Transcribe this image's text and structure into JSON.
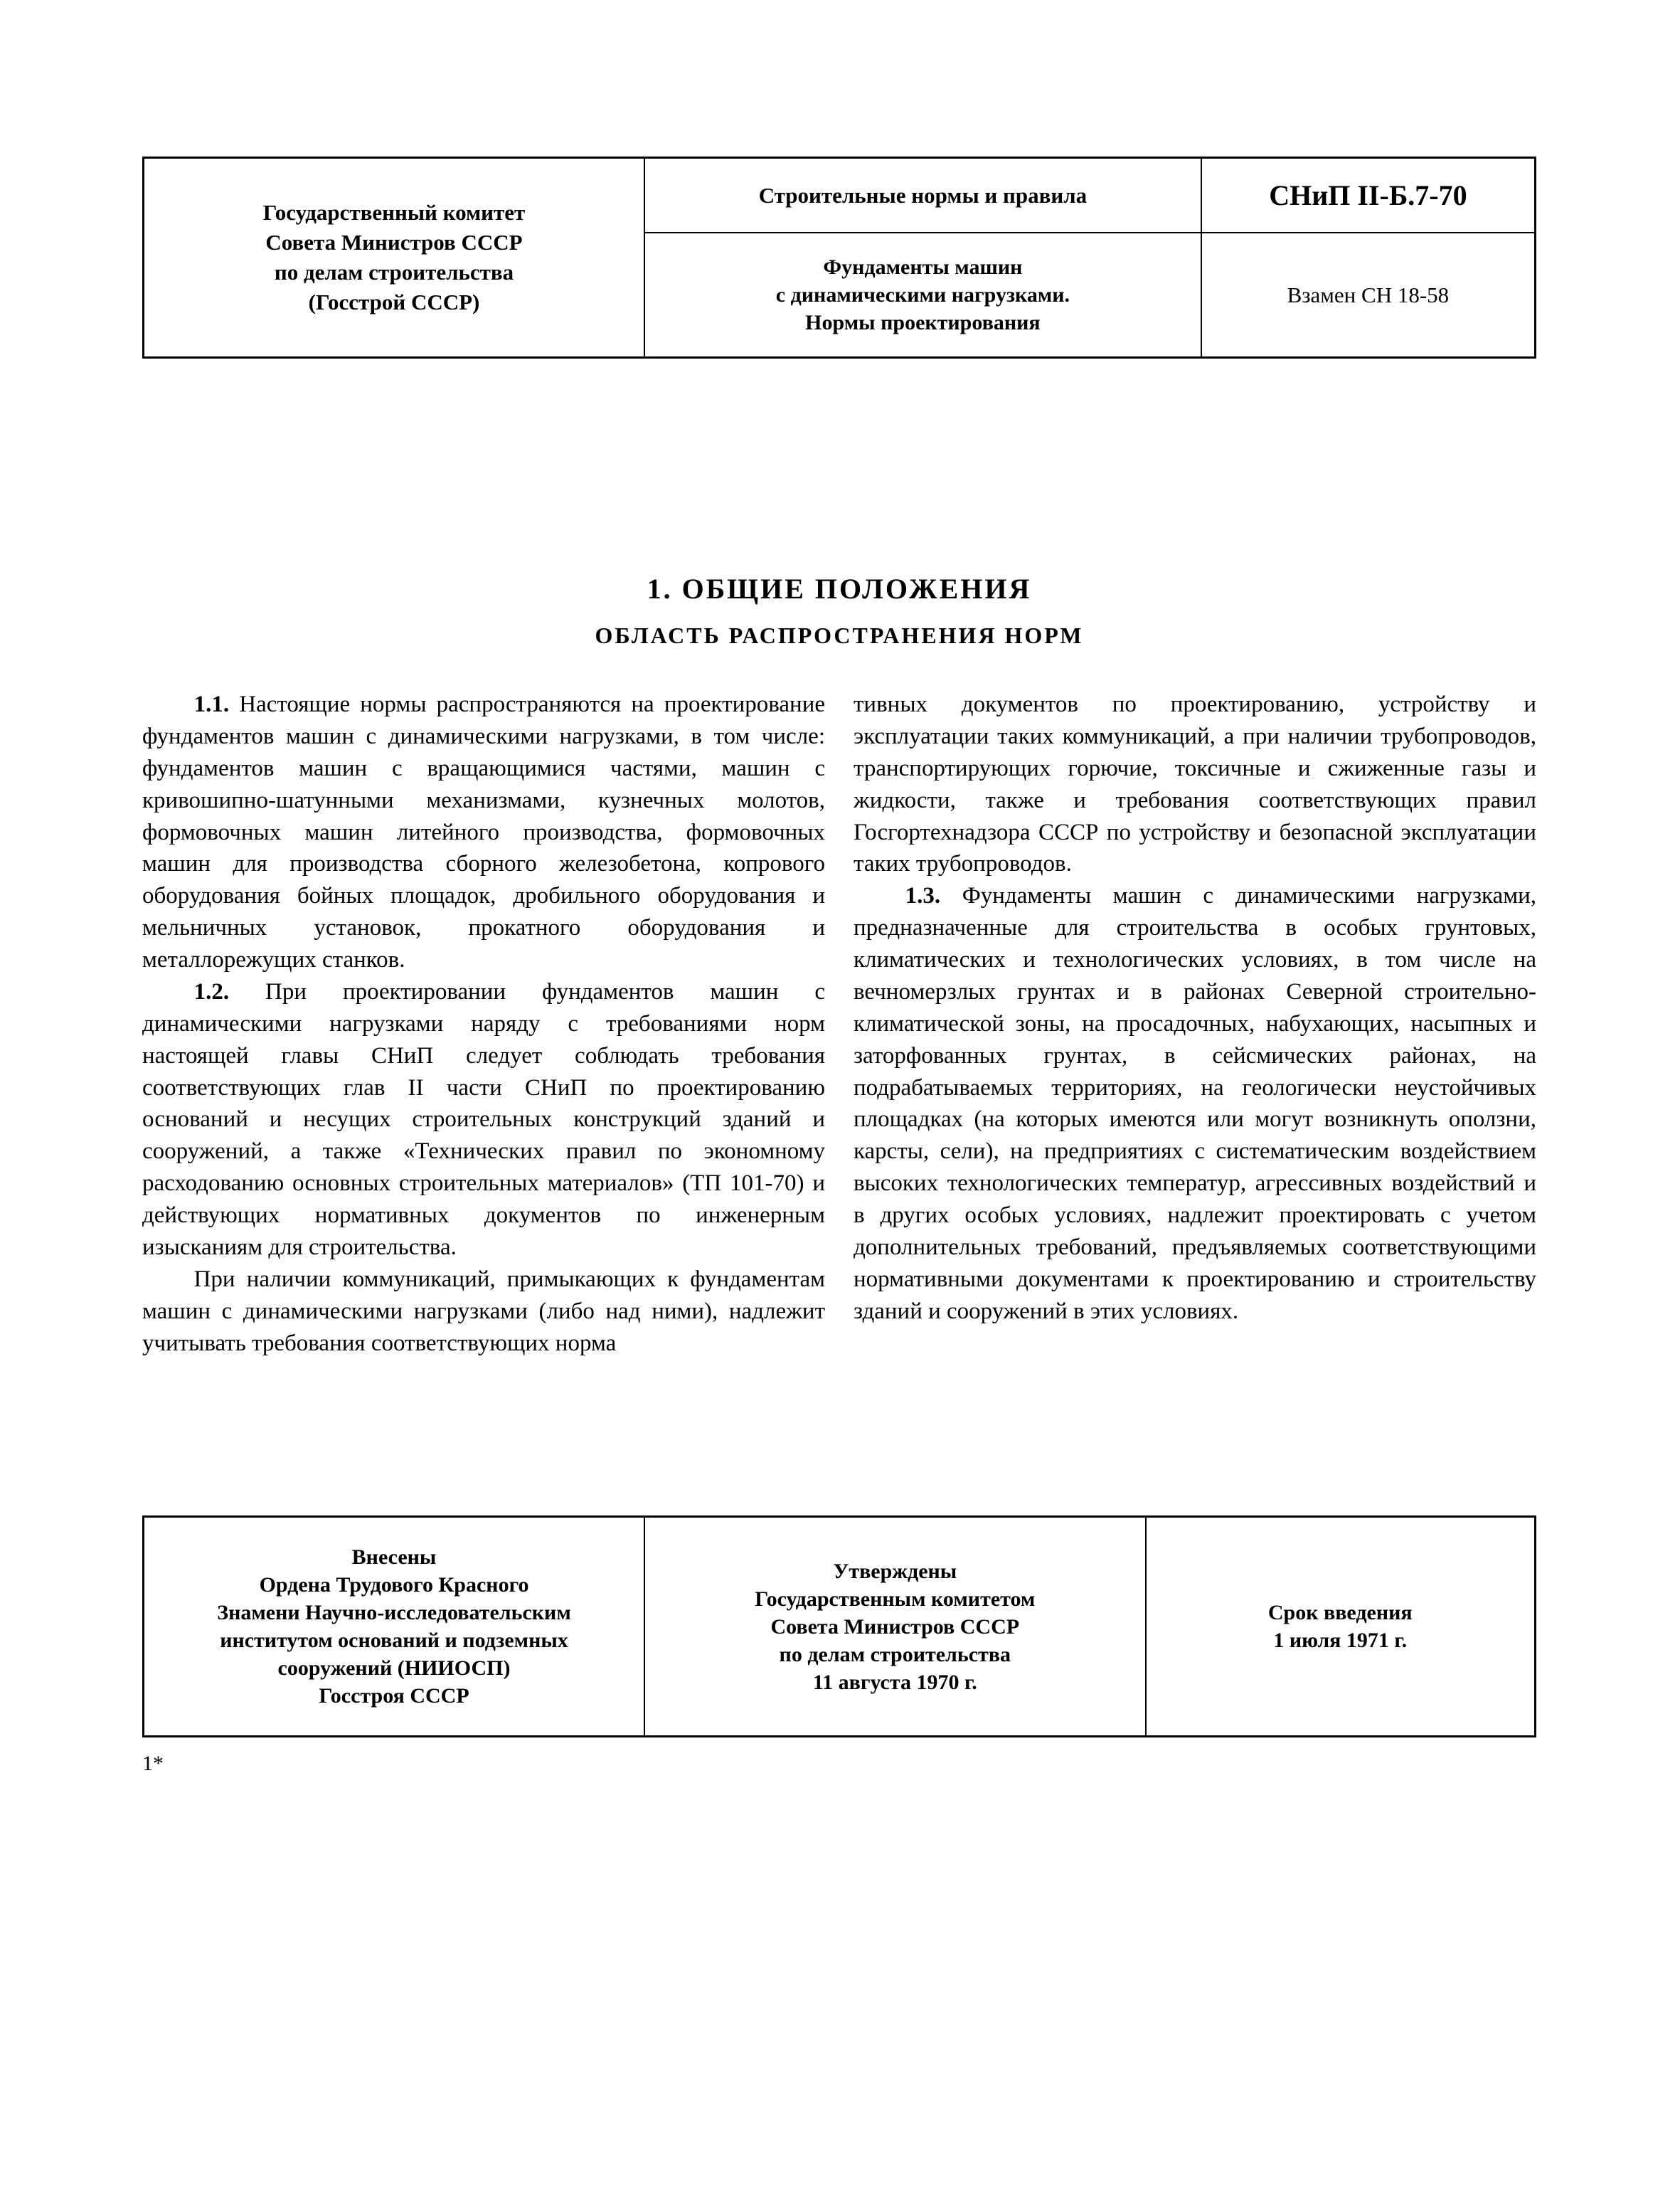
{
  "page_bg": "#ffffff",
  "text_color": "#000000",
  "border_color": "#000000",
  "header": {
    "issuer": "Государственный комитет\nСовета Министров СССР\nпо делам строительства\n(Госстрой СССР)",
    "category": "Строительные нормы и правила",
    "code": "СНиП II-Б.7-70",
    "subject": "Фундаменты машин\nс динамическими нагрузками.\nНормы проектирования",
    "supersedes": "Взамен СН 18-58"
  },
  "section": {
    "title": "1. ОБЩИЕ  ПОЛОЖЕНИЯ",
    "subtitle": "ОБЛАСТЬ  РАСПРОСТРАНЕНИЯ  НОРМ"
  },
  "body": {
    "p1_num": "1.1.",
    "p1_text": " Настоящие нормы распространяются на проектирование фундаментов машин с динамическими нагрузками, в том числе: фундаментов машин с вращающимися частями, машин с кривошипно-шатунными механизмами, кузнечных молотов, формовочных машин литейного производства, формовочных машин для производства сборного железобетона, копрового оборудования бойных площадок, дробильного оборудования и мельничных установок, прокатного оборудования и металлорежущих станков.",
    "p2_num": "1.2.",
    "p2_text": " При проектировании фундаментов машин с динамическими нагрузками наряду с требованиями норм настоящей главы СНиП следует соблюдать требования соответствующих глав II части СНиП по проектированию оснований и несущих строительных конструкций зданий и сооружений, а также «Технических правил по экономному расходованию основных строительных материалов» (ТП 101-70) и действующих нормативных документов по инженерным изысканиям для строительства.",
    "p3_text": "При наличии коммуникаций, примыкающих к фундаментам машин с динамическими нагрузками (либо над ними), надлежит учитывать требования соответствующих норма",
    "p3b_text": "тивных документов по проектированию, устройству и эксплуатации таких коммуникаций, а при наличии трубопроводов, транспортирующих горючие, токсичные и сжиженные газы и жидкости, также и требования соответствующих правил Госгортехнадзора СССР по устройству и безопасной эксплуатации таких трубопроводов.",
    "p4_num": "1.3.",
    "p4_text": " Фундаменты машин с динамическими нагрузками, предназначенные для строительства в особых грунтовых, климатических и технологических условиях, в том числе на вечномерзлых грунтах и в районах Северной строительно-климатической зоны, на просадочных, набухающих, насыпных и заторфованных грунтах, в сейсмических районах, на подрабатываемых территориях, на геологически неустойчивых площадках (на которых имеются или могут возникнуть оползни, карсты, сели), на предприятиях с систематическим воздействием высоких технологических температур, агрессивных воздействий и в других особых условиях, надлежит проектировать с учетом дополнительных требований, предъявляемых соответствующими нормативными документами к проектированию и строительству зданий и сооружений в этих условиях."
  },
  "footer": {
    "introduced_by": "Внесены\nОрдена Трудового Красного\nЗнамени Научно-исследовательским\nинститутом оснований и подземных\nсооружений (НИИОСП)\nГосстроя СССР",
    "approved_by": "Утверждены\nГосударственным комитетом\nСовета Министров СССР\nпо делам строительства\n11 августа 1970 г.",
    "effective": "Срок введения\n1 июля 1971 г."
  },
  "signature_mark": "1*"
}
